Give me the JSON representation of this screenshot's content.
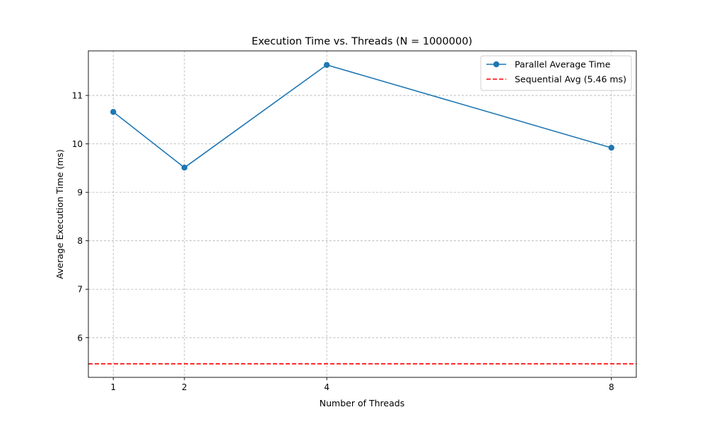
{
  "chart_data": {
    "type": "line",
    "title": "Execution Time vs. Threads (N = 1000000)",
    "xlabel": "Number of Threads",
    "ylabel": "Average Execution Time (ms)",
    "xlim": [
      0.65,
      8.35
    ],
    "ylim": [
      5.18,
      11.92
    ],
    "x_ticks": [
      1,
      2,
      4,
      8
    ],
    "y_ticks": [
      6,
      7,
      8,
      9,
      10,
      11
    ],
    "grid": true,
    "legend_position": "top-right",
    "series": [
      {
        "name": "Parallel Average Time",
        "x": [
          1,
          2,
          4,
          8
        ],
        "y": [
          10.66,
          9.51,
          11.63,
          9.92
        ],
        "color": "#1f77b4",
        "marker": "circle",
        "linestyle": "solid"
      }
    ],
    "reference_lines": [
      {
        "name": "Sequential Avg (5.46 ms)",
        "y": 5.46,
        "color": "#ff0000",
        "linestyle": "dashed"
      }
    ]
  }
}
